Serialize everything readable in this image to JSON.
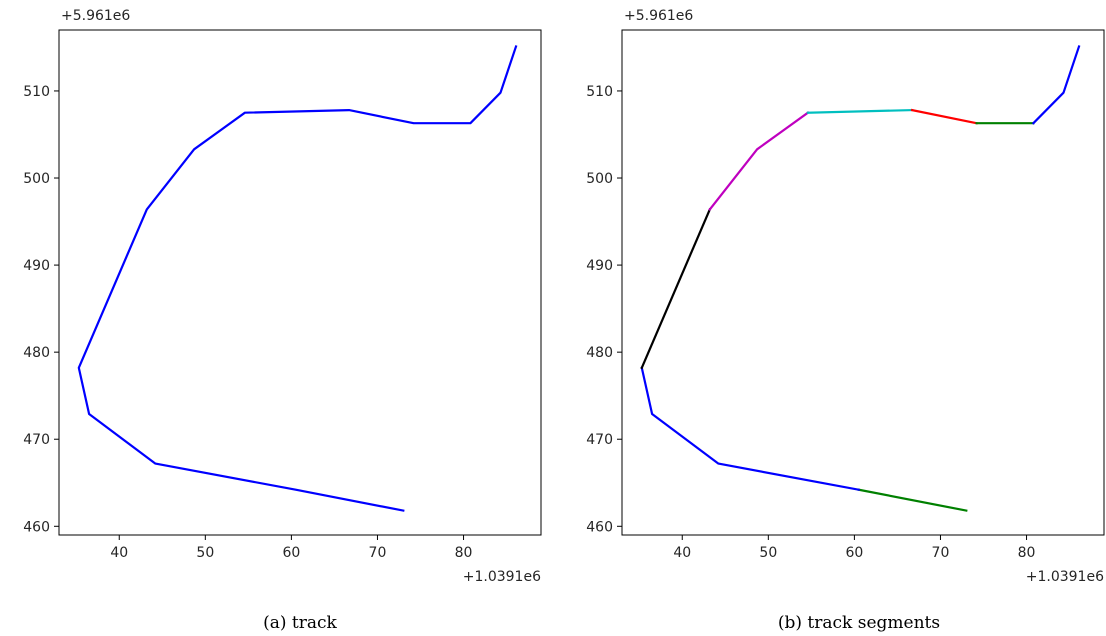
{
  "chart_data": [
    {
      "type": "line",
      "caption": "(a)  track",
      "x_offset_label": "+1.0391e6",
      "y_offset_label": "+5.961e6",
      "xlim": [
        33,
        89
      ],
      "ylim": [
        459,
        517
      ],
      "xticks": [
        40,
        50,
        60,
        70,
        80
      ],
      "yticks": [
        460,
        470,
        480,
        490,
        500,
        510
      ],
      "grid": false,
      "series": [
        {
          "color": "#0000ff",
          "points": [
            [
              73.0,
              461.8
            ],
            [
              60.5,
              464.2
            ],
            [
              44.2,
              467.2
            ],
            [
              36.5,
              472.9
            ],
            [
              35.3,
              478.2
            ],
            [
              43.2,
              496.4
            ],
            [
              48.7,
              503.3
            ],
            [
              54.6,
              507.5
            ],
            [
              66.7,
              507.8
            ],
            [
              74.2,
              506.3
            ],
            [
              80.8,
              506.3
            ],
            [
              84.3,
              509.8
            ],
            [
              86.1,
              515.1
            ]
          ]
        }
      ]
    },
    {
      "type": "line",
      "caption": "(b)  track segments",
      "x_offset_label": "+1.0391e6",
      "y_offset_label": "+5.961e6",
      "xlim": [
        33,
        89
      ],
      "ylim": [
        459,
        517
      ],
      "xticks": [
        40,
        50,
        60,
        70,
        80
      ],
      "yticks": [
        460,
        470,
        480,
        490,
        500,
        510
      ],
      "grid": false,
      "series": [
        {
          "color": "#008000",
          "points": [
            [
              73.0,
              461.8
            ],
            [
              60.5,
              464.2
            ]
          ]
        },
        {
          "color": "#0000ff",
          "points": [
            [
              60.5,
              464.2
            ],
            [
              44.2,
              467.2
            ],
            [
              36.5,
              472.9
            ],
            [
              35.3,
              478.2
            ]
          ]
        },
        {
          "color": "#000000",
          "points": [
            [
              35.3,
              478.2
            ],
            [
              43.2,
              496.4
            ]
          ]
        },
        {
          "color": "#bf00bf",
          "points": [
            [
              43.2,
              496.4
            ],
            [
              48.7,
              503.3
            ],
            [
              54.6,
              507.5
            ]
          ]
        },
        {
          "color": "#00bfbf",
          "points": [
            [
              54.6,
              507.5
            ],
            [
              66.7,
              507.8
            ]
          ]
        },
        {
          "color": "#ff0000",
          "points": [
            [
              66.7,
              507.8
            ],
            [
              74.2,
              506.3
            ]
          ]
        },
        {
          "color": "#008000",
          "points": [
            [
              74.2,
              506.3
            ],
            [
              80.8,
              506.3
            ]
          ]
        },
        {
          "color": "#0000ff",
          "points": [
            [
              80.8,
              506.3
            ],
            [
              84.3,
              509.8
            ],
            [
              86.1,
              515.1
            ]
          ]
        }
      ]
    }
  ]
}
